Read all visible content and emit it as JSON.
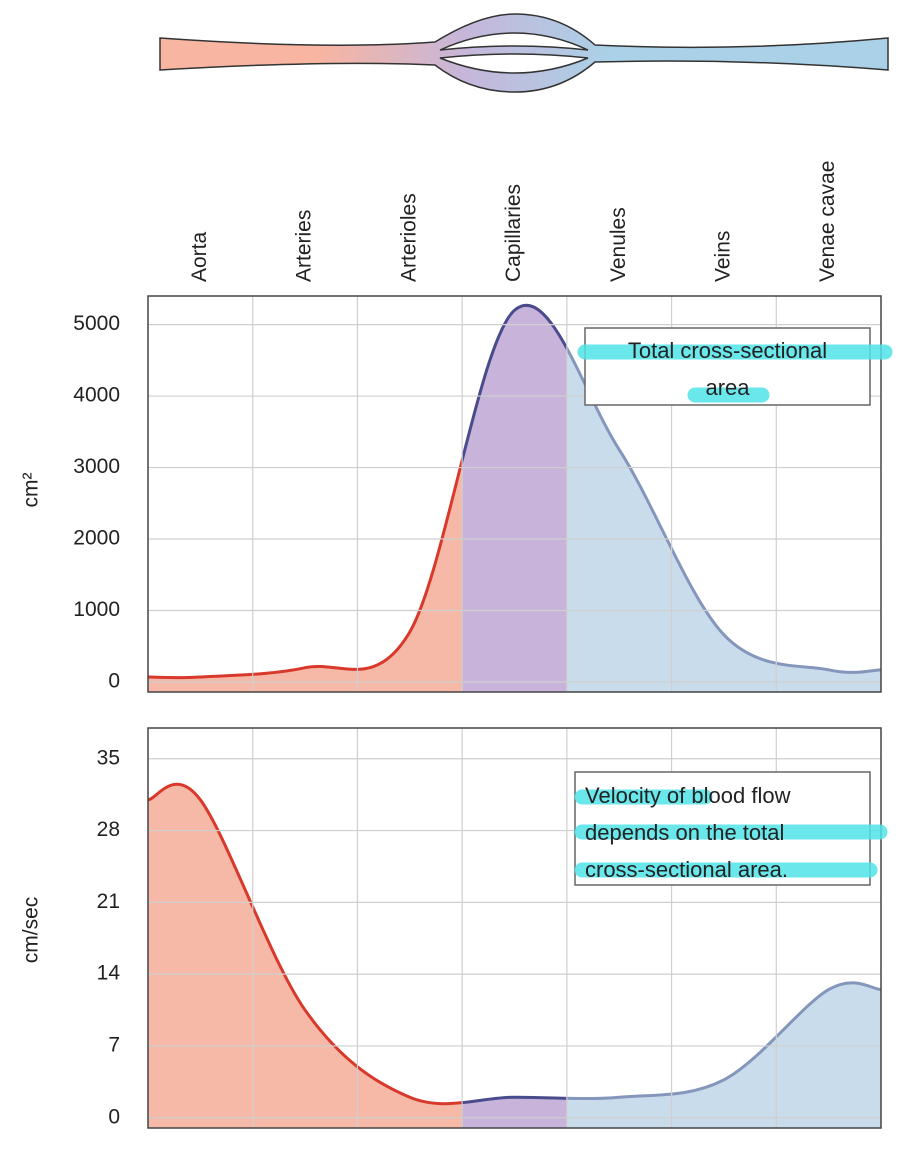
{
  "chart_data": [
    {
      "type": "area",
      "categories": [
        "Aorta",
        "Arteries",
        "Arterioles",
        "Capillaries",
        "Venules",
        "Veins",
        "Venae cavae"
      ],
      "y_label": "cm²",
      "annotation": [
        "Total cross-sectional",
        "area"
      ],
      "ylim": [
        -140,
        5400
      ],
      "yticks": [
        0,
        1000,
        2000,
        3000,
        4000,
        5000
      ],
      "grid": true,
      "series": [
        {
          "values": [
            70,
            200,
            700,
            5200,
            3250,
            660,
            170
          ],
          "colors": [
            "#f7b9a7",
            "#f7b9a7",
            "#f7b9a7",
            "#c8b4da",
            "#c9dcec",
            "#c9dcec",
            "#c9dcec"
          ],
          "line_colors": [
            "#d8392b",
            "#d8392b",
            "#d8392b",
            "#4a4b8c",
            "#8496bb",
            "#8496bb",
            "#8496bb"
          ]
        }
      ]
    },
    {
      "type": "area",
      "y_label": "cm/sec",
      "annotation": [
        "Velocity of blood flow",
        "depends on the total",
        "cross-sectional area."
      ],
      "ylim": [
        -1,
        38
      ],
      "yticks": [
        0,
        7,
        14,
        21,
        28,
        35
      ],
      "grid": true,
      "series": [
        {
          "values": [
            31,
            10.5,
            2,
            2,
            2,
            3.7,
            12.5
          ],
          "colors": [
            "#f7b9a7",
            "#f7b9a7",
            "#f7b9a7",
            "#c8b4da",
            "#c9dcec",
            "#c9dcec",
            "#c9dcec"
          ],
          "line_colors": [
            "#d8392b",
            "#d8392b",
            "#d8392b",
            "#4a4b8c",
            "#8496bb",
            "#8496bb",
            "#8496bb"
          ]
        }
      ]
    }
  ]
}
